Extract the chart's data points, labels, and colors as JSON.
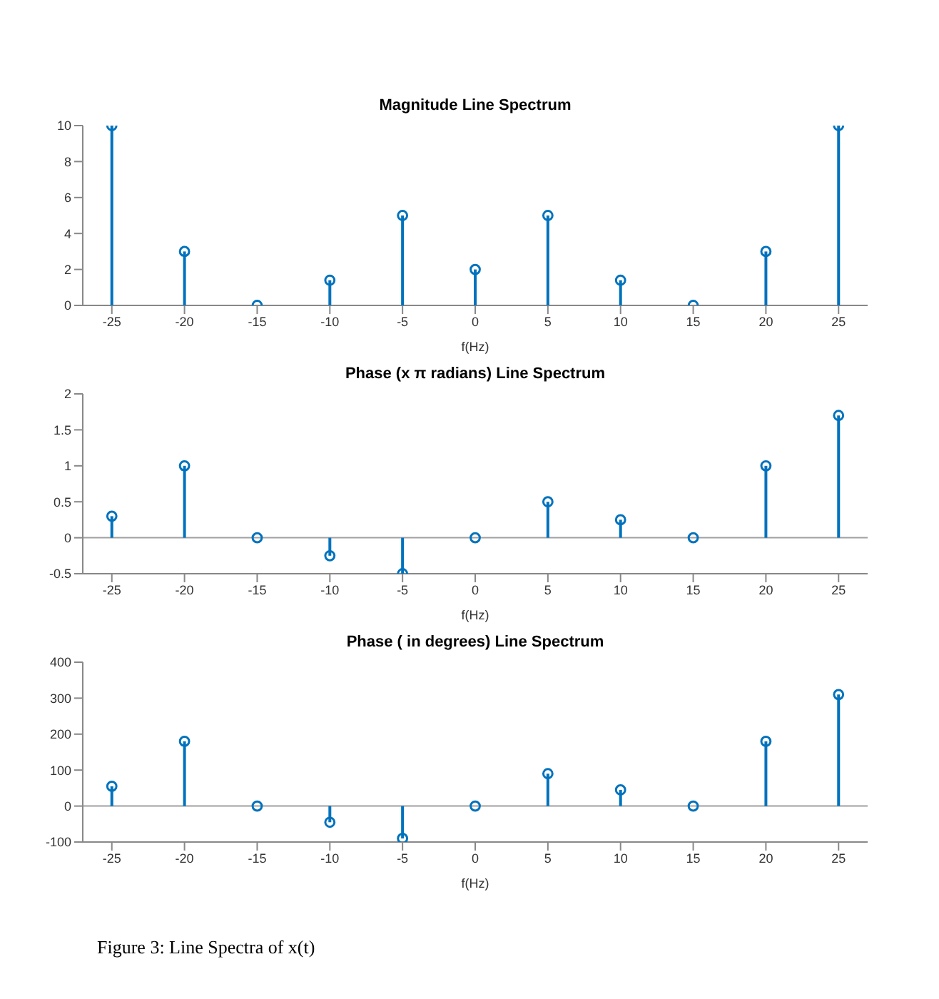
{
  "chart_data": [
    {
      "type": "lollipop",
      "title": "Magnitude Line Spectrum",
      "xlabel": "f(Hz)",
      "x": [
        -25,
        -20,
        -15,
        -10,
        -5,
        0,
        5,
        10,
        15,
        20,
        25
      ],
      "color": "#0072bd",
      "marker": "circle",
      "values": [
        10,
        3,
        0,
        1.4,
        5,
        2,
        5,
        1.4,
        0,
        3,
        10
      ],
      "xlim": [
        -27,
        27
      ],
      "xticks": [
        -25,
        -20,
        -15,
        -10,
        -5,
        0,
        5,
        10,
        15,
        20,
        25
      ],
      "ylim": [
        0,
        10
      ],
      "yticks": [
        0,
        2,
        4,
        6,
        8,
        10
      ]
    },
    {
      "type": "lollipop",
      "title": "Phase (x π radians) Line Spectrum",
      "xlabel": "f(Hz)",
      "x": [
        -25,
        -20,
        -15,
        -10,
        -5,
        0,
        5,
        10,
        15,
        20,
        25
      ],
      "color": "#0072bd",
      "marker": "circle",
      "values": [
        0.3,
        1,
        0,
        -0.25,
        -0.5,
        0,
        0.5,
        0.25,
        0,
        1,
        1.7
      ],
      "xlim": [
        -27,
        27
      ],
      "xticks": [
        -25,
        -20,
        -15,
        -10,
        -5,
        0,
        5,
        10,
        15,
        20,
        25
      ],
      "ylim": [
        -0.5,
        2
      ],
      "yticks": [
        -0.5,
        0,
        0.5,
        1,
        1.5,
        2
      ],
      "ref_lines": [
        {
          "axis": "y",
          "value": 0,
          "color": "#a0a0a0"
        }
      ]
    },
    {
      "type": "lollipop",
      "title": "Phase ( in degrees)  Line Spectrum",
      "xlabel": "f(Hz)",
      "x": [
        -25,
        -20,
        -15,
        -10,
        -5,
        0,
        5,
        10,
        15,
        20,
        25
      ],
      "color": "#0072bd",
      "marker": "circle",
      "values": [
        55,
        180,
        0,
        -45,
        -90,
        0,
        90,
        45,
        0,
        180,
        310
      ],
      "xlim": [
        -27,
        27
      ],
      "xticks": [
        -25,
        -20,
        -15,
        -10,
        -5,
        0,
        5,
        10,
        15,
        20,
        25
      ],
      "ylim": [
        -100,
        400
      ],
      "yticks": [
        -100,
        0,
        100,
        200,
        300,
        400
      ],
      "ref_lines": [
        {
          "axis": "y",
          "value": 0,
          "color": "#a0a0a0"
        }
      ],
      "annotations": [
        "Figure 3: Line Spectra of x(t)"
      ]
    }
  ]
}
